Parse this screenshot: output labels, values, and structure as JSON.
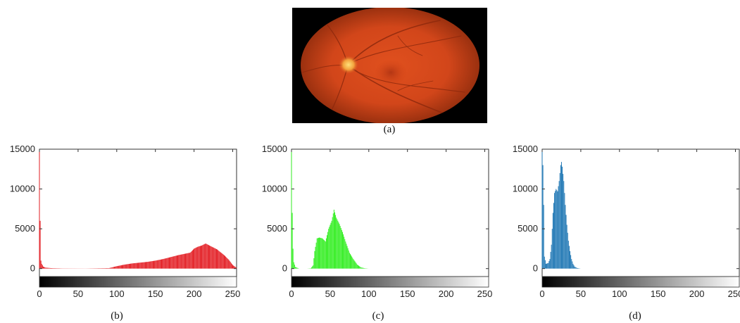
{
  "figure": {
    "caption_a": "(a)",
    "caption_b": "(b)",
    "caption_c": "(c)",
    "caption_d": "(d)"
  },
  "colors": {
    "red_channel": "#e31e24",
    "green_channel": "#33ee22",
    "blue_channel": "#1f77b4",
    "axes": "#333333"
  },
  "chart_data": [
    {
      "type": "bar",
      "panel": "(b)",
      "title": "",
      "xlabel": "",
      "ylabel": "",
      "xlim": [
        0,
        255
      ],
      "ylim": [
        -1000,
        15000
      ],
      "xticks": [
        0,
        50,
        100,
        150,
        200,
        250
      ],
      "yticks": [
        0,
        5000,
        10000,
        15000
      ],
      "grid": false,
      "colorbar": "black-to-white gradient below axis",
      "series": [
        {
          "color": "#e31e24",
          "x": [
            0,
            1,
            2,
            3,
            5,
            8,
            15,
            30,
            60,
            90,
            100,
            110,
            120,
            130,
            140,
            150,
            160,
            170,
            180,
            190,
            195,
            200,
            205,
            210,
            215,
            220,
            225,
            230,
            235,
            240,
            245,
            250,
            255
          ],
          "values": [
            15000,
            6000,
            1000,
            600,
            250,
            120,
            60,
            20,
            10,
            60,
            300,
            500,
            650,
            750,
            850,
            1000,
            1200,
            1450,
            1700,
            1900,
            2000,
            2500,
            2750,
            2900,
            3150,
            2900,
            2650,
            2400,
            2000,
            1600,
            1100,
            450,
            100
          ]
        }
      ]
    },
    {
      "type": "bar",
      "panel": "(c)",
      "title": "",
      "xlabel": "",
      "ylabel": "",
      "xlim": [
        0,
        255
      ],
      "ylim": [
        -1000,
        15000
      ],
      "xticks": [
        0,
        50,
        100,
        150,
        200,
        250
      ],
      "yticks": [
        0,
        5000,
        10000,
        15000
      ],
      "grid": false,
      "colorbar": "black-to-white gradient below axis",
      "series": [
        {
          "color": "#33ee22",
          "x": [
            0,
            1,
            2,
            3,
            5,
            10,
            20,
            25,
            28,
            30,
            33,
            36,
            40,
            44,
            48,
            52,
            55,
            58,
            62,
            66,
            70,
            75,
            80,
            85,
            90,
            95,
            100
          ],
          "values": [
            15000,
            7000,
            2500,
            800,
            200,
            0,
            0,
            40,
            400,
            2200,
            3800,
            3900,
            3800,
            3400,
            5000,
            6000,
            7400,
            6400,
            5600,
            4600,
            3400,
            2000,
            1200,
            500,
            150,
            40,
            0
          ]
        }
      ]
    },
    {
      "type": "bar",
      "panel": "(d)",
      "title": "",
      "xlabel": "",
      "ylabel": "",
      "xlim": [
        0,
        255
      ],
      "ylim": [
        -1000,
        15000
      ],
      "xticks": [
        0,
        50,
        100,
        150,
        200,
        250
      ],
      "yticks": [
        0,
        5000,
        10000,
        15000
      ],
      "grid": false,
      "colorbar": "black-to-white gradient below axis",
      "series": [
        {
          "color": "#1f77b4",
          "x": [
            0,
            1,
            2,
            3,
            5,
            8,
            10,
            12,
            14,
            16,
            18,
            20,
            22,
            24,
            25,
            26,
            28,
            30,
            32,
            34,
            36,
            38,
            40,
            42,
            45,
            50
          ],
          "values": [
            15000,
            13000,
            8000,
            1500,
            600,
            700,
            1200,
            3000,
            7000,
            9500,
            10000,
            9700,
            11000,
            13000,
            13400,
            12800,
            11000,
            8000,
            5500,
            3500,
            2200,
            1200,
            600,
            250,
            80,
            0
          ]
        }
      ]
    }
  ]
}
